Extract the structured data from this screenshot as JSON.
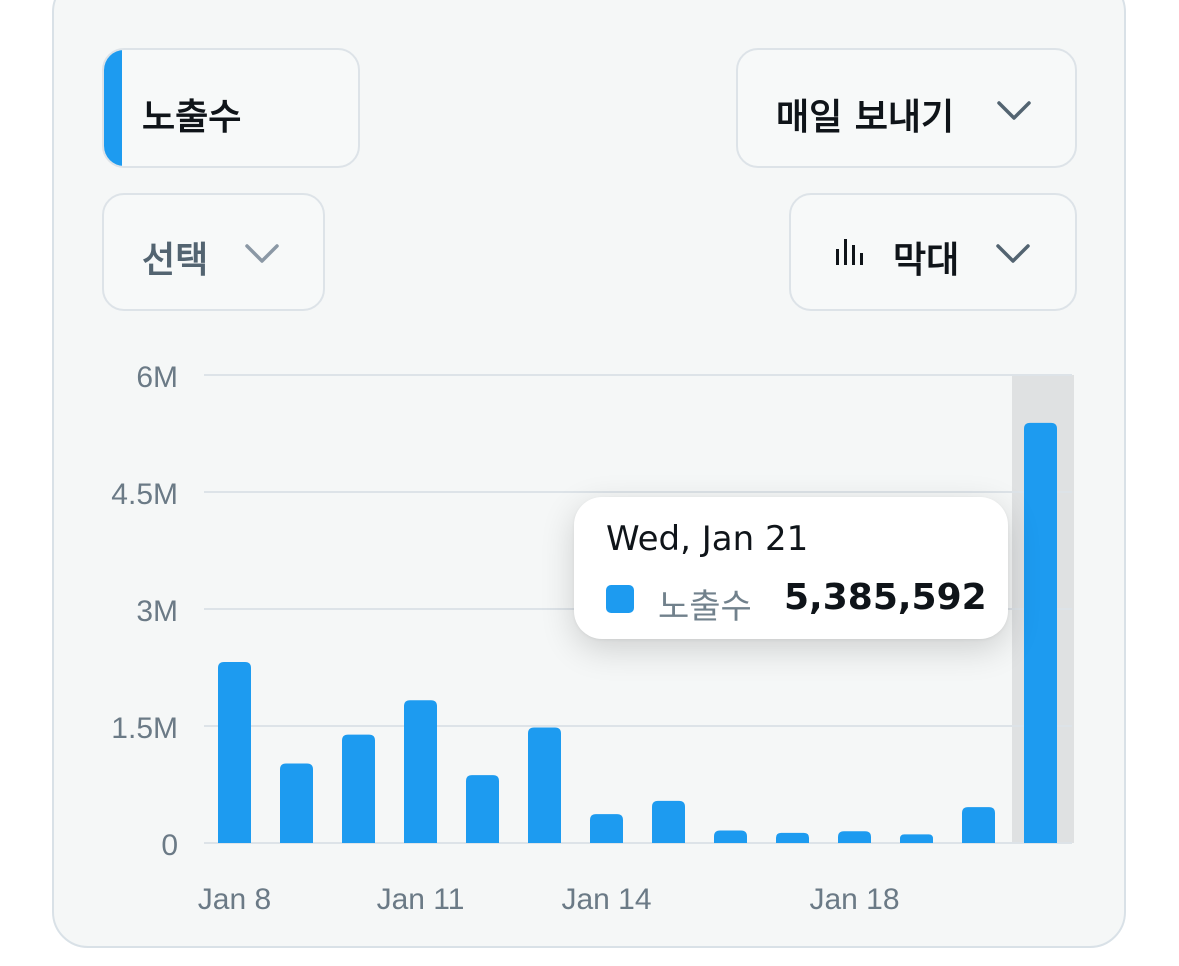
{
  "controls": {
    "metric": "노출수",
    "export": "매일 보내기",
    "select": "선택",
    "chart_type": "막대"
  },
  "colors": {
    "accent": "#1d9bf0",
    "bar": "#1d9bf0",
    "grid": "#dde3e8",
    "tick_text": "#6b7a86",
    "highlight_band": "#dfe1e2"
  },
  "icons": {
    "dropdown": "chevron-down-icon",
    "chart_type": "bar-chart-icon"
  },
  "chart_data": {
    "type": "bar",
    "series": [
      {
        "values": [
          2320000,
          1020000,
          1390000,
          1830000,
          870000,
          1480000,
          370000,
          540000,
          160000,
          130000,
          150000,
          110000,
          460000,
          5385592
        ]
      }
    ],
    "x_tick_labels": [
      "Jan 8",
      "Jan 11",
      "Jan 14",
      "Jan 18"
    ],
    "x_tick_index": [
      0,
      3,
      6,
      10
    ],
    "y_ticks": [
      0,
      1500000,
      3000000,
      4500000,
      6000000
    ],
    "y_tick_labels": [
      "0",
      "1.5M",
      "3M",
      "4.5M",
      "6M"
    ],
    "ylim": [
      0,
      6000000
    ],
    "grid": true,
    "highlighted_index": 13,
    "tooltip": {
      "date": "Wed, Jan 21",
      "series": "노출수",
      "value": "5,385,592"
    }
  }
}
